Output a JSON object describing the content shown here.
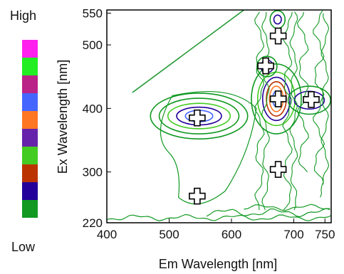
{
  "chart_data": {
    "type": "heatmap",
    "subtype": "contour",
    "title": "",
    "xlabel": "Em Wavelength [nm]",
    "ylabel": "Ex Wavelength [nm]",
    "xlim": [
      400,
      760
    ],
    "ylim": [
      220,
      555
    ],
    "x_ticks": [
      400,
      500,
      600,
      700,
      750
    ],
    "y_ticks": [
      220,
      300,
      400,
      500,
      550
    ],
    "grid": false,
    "legend": {
      "placement": "left",
      "high_label": "High",
      "low_label": "Low",
      "colors_top_to_bottom": [
        "#ff22ee",
        "#22ee22",
        "#bb2288",
        "#4466ff",
        "#ff7722",
        "#6622aa",
        "#44cc22",
        "#bb3300",
        "#220099",
        "#119922"
      ]
    },
    "rayleigh_line": {
      "points": [
        [
          441,
          425
        ],
        [
          620,
          555
        ]
      ],
      "color": "#229933"
    },
    "peak_markers": [
      {
        "x": 545,
        "y": 262
      },
      {
        "x": 545,
        "y": 385
      },
      {
        "x": 675,
        "y": 514
      },
      {
        "x": 655,
        "y": 467
      },
      {
        "x": 675,
        "y": 415
      },
      {
        "x": 728,
        "y": 414
      },
      {
        "x": 675,
        "y": 304
      }
    ],
    "contour_regions": [
      {
        "name": "",
        "cx": 548,
        "cy": 388,
        "rx": 30,
        "ry": 12,
        "levels": [
          {
            "rx": 78,
            "ry": 36,
            "color": "#119922"
          },
          {
            "rx": 64,
            "ry": 28,
            "color": "#119922"
          },
          {
            "rx": 50,
            "ry": 20,
            "color": "#44cc22"
          },
          {
            "rx": 36,
            "ry": 14,
            "color": "#220099"
          },
          {
            "rx": 22,
            "ry": 9,
            "color": "#4466ff"
          }
        ]
      },
      {
        "name": "",
        "cx": 672,
        "cy": 415,
        "levels": [
          {
            "rx": 40,
            "ry": 55,
            "color": "#119922"
          },
          {
            "rx": 30,
            "ry": 42,
            "color": "#44cc22"
          },
          {
            "rx": 22,
            "ry": 34,
            "color": "#220099"
          },
          {
            "rx": 16,
            "ry": 27,
            "color": "#bb3300"
          },
          {
            "rx": 11,
            "ry": 20,
            "color": "#ff7722"
          },
          {
            "rx": 6,
            "ry": 12,
            "color": "#4466ff"
          }
        ]
      },
      {
        "name": "",
        "cx": 725,
        "cy": 413,
        "levels": [
          {
            "rx": 34,
            "ry": 22,
            "color": "#119922"
          },
          {
            "rx": 24,
            "ry": 14,
            "color": "#220099"
          }
        ]
      },
      {
        "name": "",
        "cx": 657,
        "cy": 466,
        "levels": [
          {
            "rx": 16,
            "ry": 16,
            "color": "#119922"
          },
          {
            "rx": 10,
            "ry": 10,
            "color": "#220099"
          }
        ]
      },
      {
        "name": "",
        "cx": 674,
        "cy": 540,
        "levels": [
          {
            "rx": 12,
            "ry": 14,
            "color": "#119922"
          },
          {
            "rx": 6,
            "ry": 7,
            "color": "#220099"
          }
        ]
      }
    ]
  }
}
